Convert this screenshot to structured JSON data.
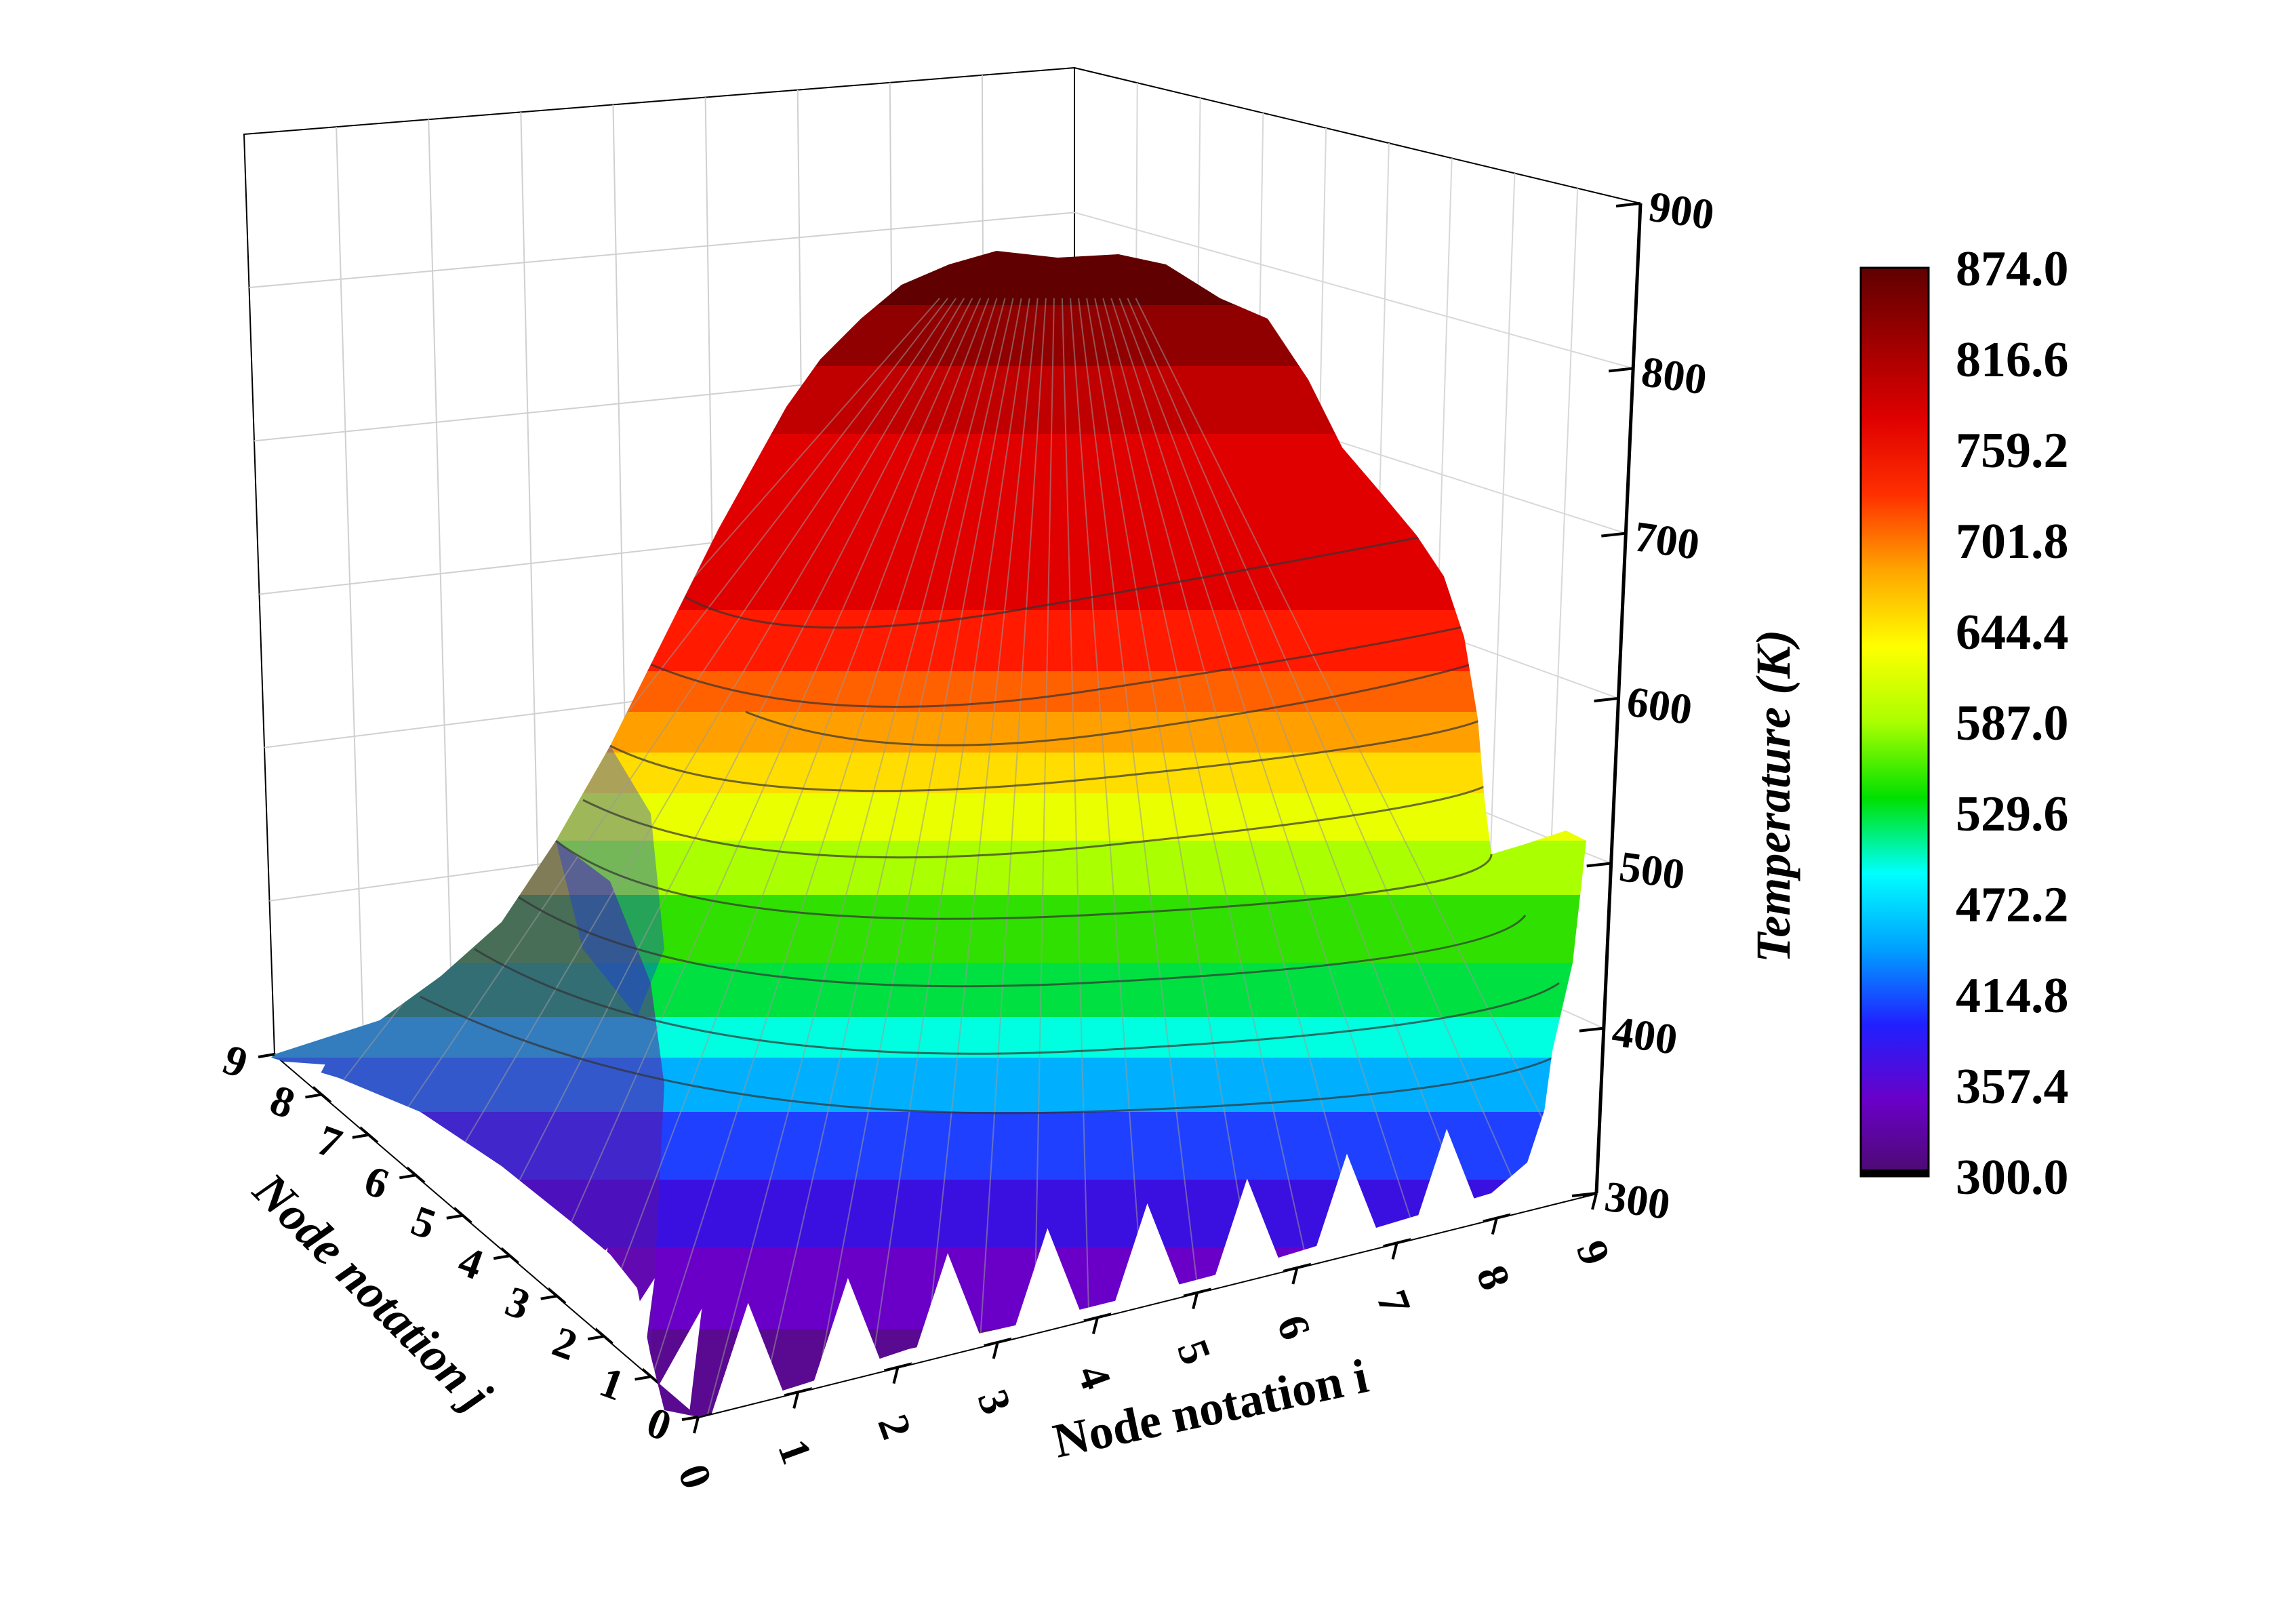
{
  "chart_data": {
    "type": "surface3d",
    "title": "",
    "x_axis": {
      "label": "Node notation i",
      "range": [
        0,
        9
      ],
      "ticks": [
        "0",
        "1",
        "2",
        "3",
        "4",
        "5",
        "6",
        "7",
        "8",
        "9"
      ]
    },
    "y_axis": {
      "label": "Node notation j",
      "range": [
        0,
        9
      ],
      "ticks": [
        "0",
        "1",
        "2",
        "3",
        "4",
        "5",
        "6",
        "7",
        "8",
        "9"
      ]
    },
    "z_axis": {
      "label": "Temperature (K)",
      "range": [
        300,
        900
      ],
      "ticks": [
        "300",
        "400",
        "500",
        "600",
        "700",
        "800",
        "900"
      ]
    },
    "colorbar": {
      "min": 300.0,
      "max": 874.0,
      "ticks": [
        "874.0",
        "816.6",
        "759.2",
        "701.8",
        "644.4",
        "587.0",
        "529.6",
        "472.2",
        "414.8",
        "357.4",
        "300.0"
      ]
    },
    "grid": true,
    "surface_shape": "temperature dome peaking near i≈4.5, j≈8 (~874 K), edges near 300 K",
    "colormap": [
      "#4b0b6e",
      "#6a00c8",
      "#2020ff",
      "#00a0ff",
      "#00ffff",
      "#00e000",
      "#aaff00",
      "#ffff00",
      "#ffa500",
      "#ff3000",
      "#e00000",
      "#a00000",
      "#600000"
    ]
  }
}
